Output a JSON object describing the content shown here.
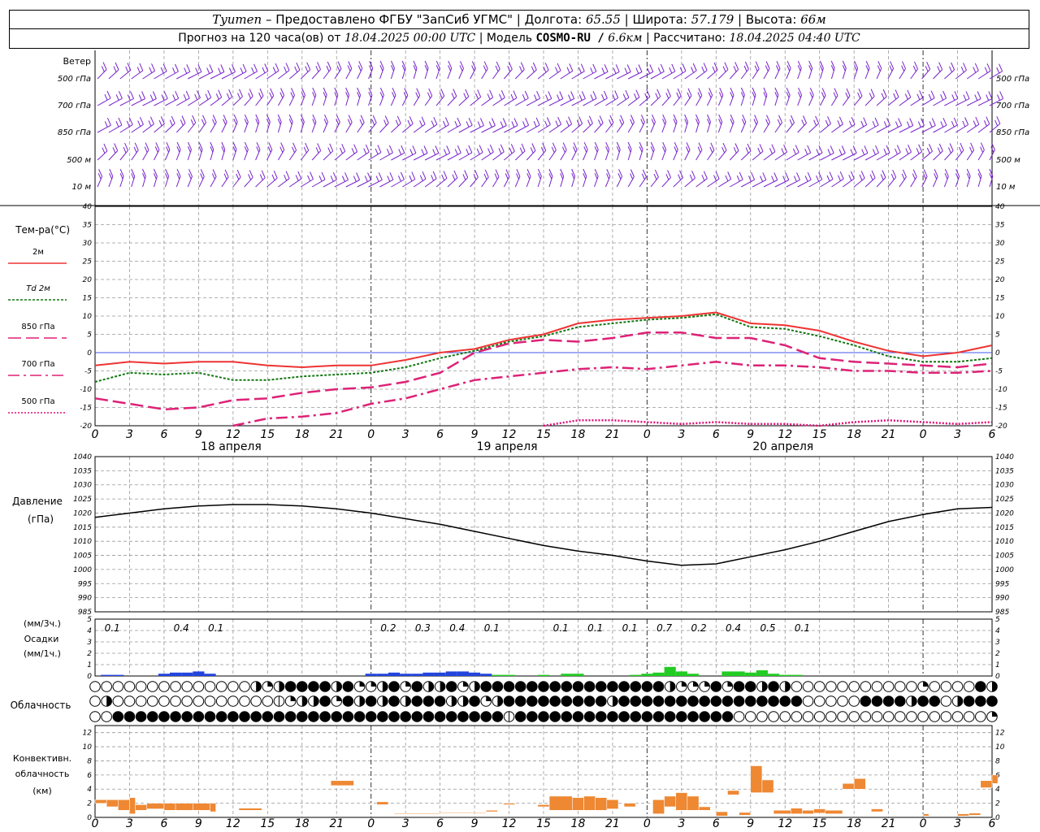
{
  "header": {
    "place": "Tyumen",
    "provider": "– Предоставлено ФГБУ \"ЗапСиб УГМС\"",
    "lon_label": "| Долгота:",
    "lon": "65.55",
    "lat_label": "| Широта:",
    "lat": "57.179",
    "alt_label": "| Высота:",
    "alt": "66м",
    "forecast_label": "Прогноз на 120 часа(ов) от",
    "forecast_start": "18.04.2025 00:00 UTC",
    "model_label": "| Модель",
    "model": "COSMO-RU /",
    "resolution": "6.6км",
    "calc_label": "| Рассчитано:",
    "calc_time": "18.04.2025 04:40 UTC"
  },
  "colors": {
    "t2m": "#ee3333",
    "td2m": "#117711",
    "t850": "#dd2277",
    "t700": "#dd2277",
    "t500": "#dd1177",
    "wind": "#7722cc",
    "pressure": "#000000",
    "precip_snow": "#2244dd",
    "precip_rain": "#22cc22",
    "conv": "#ee8833",
    "grid": "#999999",
    "zero_line": "#4455ee"
  },
  "chart_data": [
    {
      "type": "barbs",
      "ylabel": "Ветер",
      "levels": [
        "500 гПа",
        "700 гПа",
        "850 гПа",
        "500 м",
        "10 м"
      ]
    },
    {
      "type": "line",
      "ylabel": "Тем-ра(°C)",
      "ylim": [
        -20,
        40
      ],
      "yticks": [
        40,
        35,
        30,
        25,
        20,
        15,
        10,
        5,
        0,
        -5,
        -10,
        -15,
        -20
      ],
      "x_hour_labels": [
        "0",
        "3",
        "6",
        "9",
        "12",
        "15",
        "18",
        "21",
        "0",
        "3",
        "6",
        "9",
        "12",
        "15",
        "18",
        "21",
        "0",
        "3",
        "6",
        "9",
        "12",
        "15",
        "18",
        "21",
        "0",
        "3",
        "6"
      ],
      "date_labels": [
        "18 апреля",
        "19 апреля",
        "20 апреля"
      ],
      "x_hours": [
        0,
        3,
        6,
        9,
        12,
        15,
        18,
        21,
        24,
        27,
        30,
        33,
        36,
        39,
        42,
        45,
        48,
        51,
        54,
        57,
        60,
        63,
        66,
        69,
        72,
        75,
        78
      ],
      "series": [
        {
          "name": "2м",
          "values": [
            -3.5,
            -2.5,
            -3.0,
            -2.5,
            -2.5,
            -3.5,
            -4.0,
            -3.5,
            -3.5,
            -2.0,
            0.0,
            1.0,
            3.5,
            5.0,
            8.0,
            9.0,
            9.5,
            10.0,
            11.0,
            8.0,
            7.5,
            6.0,
            3.0,
            0.5,
            -1.0,
            0.0,
            2.0
          ]
        },
        {
          "name": "Td 2м",
          "values": [
            -8.0,
            -5.5,
            -6.0,
            -5.5,
            -7.5,
            -7.5,
            -6.5,
            -6.0,
            -5.5,
            -4.0,
            -1.5,
            0.5,
            3.0,
            4.5,
            7.0,
            8.0,
            9.0,
            9.5,
            10.5,
            7.0,
            6.5,
            4.5,
            2.0,
            -1.0,
            -2.5,
            -2.5,
            -1.5
          ]
        },
        {
          "name": "850 гПа",
          "values": [
            -12.5,
            -14.0,
            -15.5,
            -15.0,
            -13.0,
            -12.5,
            -11.0,
            -10.0,
            -9.5,
            -8.0,
            -5.5,
            0.0,
            2.5,
            3.5,
            3.0,
            4.0,
            5.5,
            5.5,
            4.0,
            4.0,
            2.0,
            -1.5,
            -2.5,
            -3.0,
            -3.5,
            -4.0,
            -3.0
          ]
        },
        {
          "name": "700 гПа",
          "values": [
            null,
            null,
            null,
            null,
            -20.0,
            -18.0,
            -17.5,
            -16.5,
            -14.0,
            -12.5,
            -10.0,
            -7.5,
            -6.5,
            -5.5,
            -4.5,
            -4.0,
            -4.5,
            -3.5,
            -2.5,
            -3.5,
            -3.5,
            -4.0,
            -5.0,
            -5.0,
            -5.5,
            -5.5,
            -5.0
          ]
        },
        {
          "name": "500 гПа",
          "values": [
            null,
            null,
            null,
            null,
            null,
            null,
            null,
            null,
            null,
            null,
            null,
            null,
            null,
            -20.0,
            -18.5,
            -18.5,
            -19.0,
            -19.5,
            -19.0,
            -19.5,
            -19.5,
            -20.0,
            -19.0,
            -18.5,
            -19.0,
            -19.5,
            -19.0
          ]
        }
      ]
    },
    {
      "type": "line",
      "ylabel_line1": "Давление",
      "ylabel_line2": "(гПа)",
      "ylim": [
        985,
        1040
      ],
      "yticks": [
        1040,
        1035,
        1030,
        1025,
        1020,
        1015,
        1010,
        1005,
        1000,
        995,
        990,
        985
      ],
      "series": [
        {
          "name": "pressure",
          "x": [
            0,
            3,
            6,
            9,
            12,
            15,
            18,
            21,
            24,
            27,
            30,
            33,
            36,
            39,
            42,
            45,
            48,
            51,
            54,
            57,
            60,
            63,
            66,
            69,
            72,
            75,
            78
          ],
          "values": [
            1018.5,
            1020.0,
            1021.5,
            1022.5,
            1023.0,
            1023.0,
            1022.5,
            1021.5,
            1020.0,
            1018.0,
            1016.0,
            1013.5,
            1011.0,
            1008.5,
            1006.5,
            1005.0,
            1003.0,
            1001.5,
            1002.0,
            1004.5,
            1007.0,
            1010.0,
            1013.5,
            1017.0,
            1019.5,
            1021.5,
            1022.0
          ]
        }
      ]
    },
    {
      "type": "bar",
      "ylabel_line1": "(мм/3ч.)",
      "ylabel_line2": "Осадки",
      "ylabel_line3": "(мм/1ч.)",
      "ylim": [
        0,
        5
      ],
      "yticks": [
        5,
        4,
        3,
        2,
        1,
        0
      ],
      "totals": [
        {
          "x": 1.5,
          "label": "0.1"
        },
        {
          "x": 7.5,
          "label": "0.4"
        },
        {
          "x": 10.5,
          "label": "0.1"
        },
        {
          "x": 25.5,
          "label": "0.2"
        },
        {
          "x": 28.5,
          "label": "0.3"
        },
        {
          "x": 31.5,
          "label": "0.4"
        },
        {
          "x": 34.5,
          "label": "0.1"
        },
        {
          "x": 40.5,
          "label": "0.1"
        },
        {
          "x": 43.5,
          "label": "0.1"
        },
        {
          "x": 46.5,
          "label": "0.1"
        },
        {
          "x": 49.5,
          "label": "0.7"
        },
        {
          "x": 52.5,
          "label": "0.2"
        },
        {
          "x": 55.5,
          "label": "0.4"
        },
        {
          "x": 58.5,
          "label": "0.5"
        },
        {
          "x": 61.5,
          "label": "0.1"
        }
      ],
      "snow": [
        [
          1,
          0.1
        ],
        [
          2,
          0.1
        ],
        [
          6,
          0.2
        ],
        [
          7,
          0.3
        ],
        [
          8,
          0.3
        ],
        [
          9,
          0.4
        ],
        [
          10,
          0.2
        ],
        [
          24,
          0.2
        ],
        [
          25,
          0.2
        ],
        [
          26,
          0.3
        ],
        [
          27,
          0.2
        ],
        [
          28,
          0.2
        ],
        [
          29,
          0.3
        ],
        [
          30,
          0.3
        ],
        [
          31,
          0.4
        ],
        [
          32,
          0.4
        ],
        [
          33,
          0.3
        ],
        [
          34,
          0.2
        ]
      ],
      "rain": [
        [
          35,
          0.1
        ],
        [
          36,
          0.1
        ],
        [
          39,
          0.1
        ],
        [
          41,
          0.2
        ],
        [
          42,
          0.2
        ],
        [
          47,
          0.1
        ],
        [
          48,
          0.2
        ],
        [
          49,
          0.3
        ],
        [
          50,
          0.8
        ],
        [
          51,
          0.4
        ],
        [
          52,
          0.2
        ],
        [
          55,
          0.4
        ],
        [
          56,
          0.4
        ],
        [
          57,
          0.3
        ],
        [
          58,
          0.5
        ],
        [
          59,
          0.2
        ],
        [
          60,
          0.1
        ],
        [
          61,
          0.1
        ]
      ]
    },
    {
      "type": "heatmap",
      "ylabel": "Облачность",
      "levels": [
        "high",
        "middle",
        "low"
      ],
      "x_hours": [
        0,
        1,
        2,
        3,
        4,
        5,
        6,
        7,
        8,
        9,
        10,
        11,
        12,
        13,
        14,
        15,
        16,
        17,
        18,
        19,
        20,
        21,
        22,
        23,
        24,
        25,
        26,
        27,
        28,
        29,
        30,
        31,
        32,
        33,
        34,
        35,
        36,
        37,
        38,
        39,
        40,
        41,
        42,
        43,
        44,
        45,
        46,
        47,
        48,
        49,
        50,
        51,
        52,
        53,
        54,
        55,
        56,
        57,
        58,
        59,
        60,
        61,
        62,
        63,
        64,
        65,
        66,
        67,
        68,
        69,
        70,
        71,
        72,
        73,
        74,
        75,
        76,
        77,
        78
      ],
      "rows": [
        [
          0,
          0,
          0,
          0,
          0,
          0,
          0,
          0,
          0,
          0,
          0,
          0,
          0,
          0,
          3,
          2,
          3,
          4,
          4,
          4,
          4,
          3,
          4,
          2,
          2,
          3,
          4,
          2,
          4,
          3,
          3,
          4,
          2,
          3,
          4,
          4,
          4,
          4,
          4,
          4,
          4,
          4,
          4,
          4,
          4,
          4,
          4,
          4,
          4,
          4,
          3,
          2,
          2,
          2,
          4,
          2,
          4,
          4,
          3,
          4,
          3,
          0,
          0,
          0,
          0,
          0,
          0,
          0,
          0,
          0,
          0,
          0,
          2,
          0,
          0,
          0,
          0,
          4,
          3
        ],
        [
          0,
          3,
          0,
          0,
          0,
          0,
          0,
          0,
          0,
          0,
          0,
          0,
          0,
          0,
          0,
          0,
          1,
          2,
          3,
          3,
          4,
          2,
          4,
          3,
          4,
          3,
          4,
          3,
          4,
          4,
          4,
          3,
          3,
          4,
          2,
          3,
          4,
          4,
          4,
          4,
          4,
          4,
          4,
          4,
          4,
          3,
          4,
          4,
          4,
          4,
          4,
          4,
          4,
          4,
          4,
          4,
          4,
          4,
          4,
          4,
          4,
          4,
          0,
          0,
          0,
          0,
          0,
          4,
          4,
          4,
          4,
          3,
          4,
          4,
          0,
          3,
          4,
          4,
          4
        ],
        [
          0,
          0,
          4,
          4,
          4,
          4,
          4,
          4,
          4,
          4,
          4,
          4,
          4,
          4,
          4,
          4,
          4,
          4,
          4,
          4,
          4,
          4,
          4,
          4,
          4,
          4,
          4,
          4,
          4,
          4,
          4,
          4,
          4,
          4,
          4,
          4,
          1,
          4,
          4,
          4,
          4,
          4,
          4,
          4,
          4,
          4,
          4,
          4,
          4,
          4,
          4,
          4,
          4,
          4,
          4,
          4,
          0,
          0,
          0,
          0,
          0,
          0,
          0,
          0,
          0,
          0,
          0,
          0,
          0,
          0,
          0,
          0,
          0,
          0,
          0,
          0,
          0,
          0,
          2
        ]
      ]
    },
    {
      "type": "bar",
      "ylabel_line1": "Конвективн.",
      "ylabel_line2": "облачность",
      "ylabel_line3": "(км)",
      "ylim": [
        0,
        13
      ],
      "yticks": [
        12,
        10,
        8,
        6,
        4,
        2,
        0
      ],
      "segments": [
        [
          0,
          1,
          2,
          2.5
        ],
        [
          1,
          2,
          1.5,
          2.5
        ],
        [
          2,
          3,
          1,
          2.5
        ],
        [
          3,
          3.5,
          0.5,
          2.8
        ],
        [
          3.5,
          4.5,
          1,
          1.8
        ],
        [
          4.5,
          6,
          1.2,
          2
        ],
        [
          6,
          7,
          1,
          2
        ],
        [
          7,
          8.5,
          1,
          2
        ],
        [
          8.5,
          10,
          1,
          2
        ],
        [
          10,
          10.5,
          0.8,
          2
        ],
        [
          12.5,
          14.5,
          1,
          1.3
        ],
        [
          20.5,
          22.5,
          4.5,
          5.2
        ],
        [
          24.5,
          25.5,
          1.8,
          2.2
        ],
        [
          26,
          30,
          0.5,
          0.6
        ],
        [
          30,
          34,
          0.6,
          0.7
        ],
        [
          34,
          35,
          0.8,
          1
        ],
        [
          35.5,
          36.5,
          1.8,
          2
        ],
        [
          38.5,
          39.5,
          1.5,
          1.8
        ],
        [
          39.5,
          41.5,
          1,
          3
        ],
        [
          41.5,
          42.5,
          1,
          2.8
        ],
        [
          42.5,
          43.5,
          1,
          3
        ],
        [
          43.5,
          44.5,
          1,
          2.8
        ],
        [
          44.5,
          45.5,
          1.2,
          2.5
        ],
        [
          46,
          47,
          1.5,
          2
        ],
        [
          48.5,
          49.5,
          0.5,
          2.5
        ],
        [
          49.5,
          50.5,
          1.5,
          3
        ],
        [
          50.5,
          51.5,
          1,
          3.5
        ],
        [
          51.5,
          52.5,
          1,
          3
        ],
        [
          52.5,
          53.5,
          1,
          1.5
        ],
        [
          54,
          55,
          0.2,
          0.8
        ],
        [
          55,
          56,
          3.2,
          3.8
        ],
        [
          56,
          57,
          0.3,
          0.7
        ],
        [
          57,
          58,
          3.5,
          7.3
        ],
        [
          58,
          59,
          3.5,
          5.3
        ],
        [
          59,
          60.5,
          0.5,
          1
        ],
        [
          60.5,
          61.5,
          0.5,
          1.3
        ],
        [
          61.5,
          62.5,
          0.5,
          1
        ],
        [
          62.5,
          63.5,
          0.6,
          1.2
        ],
        [
          63.5,
          65,
          0.5,
          1
        ],
        [
          65,
          66,
          4,
          4.8
        ],
        [
          66,
          67,
          4,
          5.5
        ],
        [
          67.5,
          68.5,
          0.8,
          1.2
        ],
        [
          72,
          72.5,
          0.2,
          0.5
        ],
        [
          75,
          76,
          0.2,
          0.5
        ],
        [
          76,
          77,
          0.3,
          0.6
        ],
        [
          77,
          78,
          4.2,
          5.2
        ],
        [
          78,
          78.5,
          4.8,
          6
        ]
      ]
    }
  ]
}
